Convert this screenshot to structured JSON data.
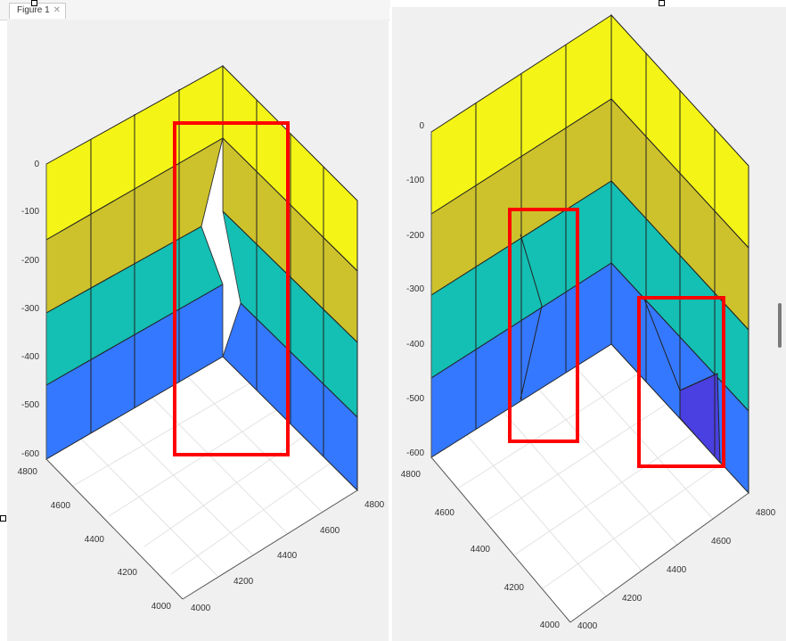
{
  "window": {
    "tab_title": "Figure 1",
    "tab_close_glyph": "✕"
  },
  "colors": {
    "layer1": "#f4f416",
    "layer2": "#cdc22b",
    "layer3": "#14bfb3",
    "layer4": "#3478ff",
    "wedge": "#4a3fe0",
    "highlight": "#ff0000",
    "floor": "#ffffff",
    "background": "#f0f0f0"
  },
  "left_plot": {
    "z_ticks": [
      "0",
      "-100",
      "-200",
      "-300",
      "-400",
      "-500",
      "-600"
    ],
    "y_ticks": [
      "4800",
      "4600",
      "4400",
      "4200",
      "4000"
    ],
    "x_ticks": [
      "4000",
      "4200",
      "4400",
      "4600",
      "4800"
    ]
  },
  "right_plot": {
    "z_ticks": [
      "0",
      "-100",
      "-200",
      "-300",
      "-400",
      "-500",
      "-600"
    ],
    "y_ticks": [
      "4800",
      "4600",
      "4400",
      "4200",
      "4000"
    ],
    "x_ticks": [
      "4000",
      "4200",
      "4400",
      "4600",
      "4800"
    ]
  }
}
